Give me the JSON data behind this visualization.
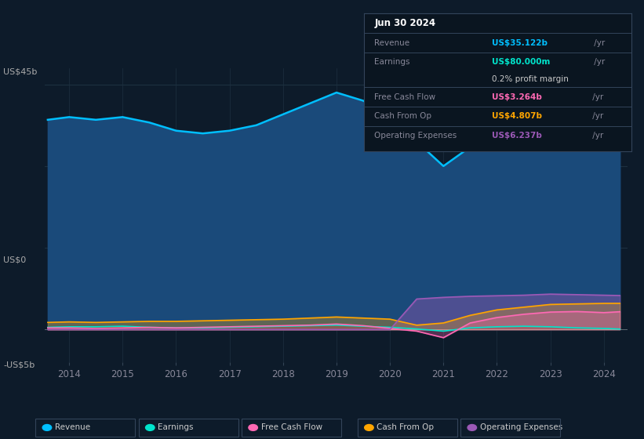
{
  "bg_color": "#0d1b2a",
  "chart_bg": "#0d1b2a",
  "y_label_top": "US$45b",
  "y_label_zero": "US$0",
  "y_label_neg": "-US$5b",
  "x_ticks": [
    2014,
    2015,
    2016,
    2017,
    2018,
    2019,
    2020,
    2021,
    2022,
    2023,
    2024
  ],
  "years": [
    2013.6,
    2014.0,
    2014.5,
    2015.0,
    2015.5,
    2016.0,
    2016.5,
    2017.0,
    2017.5,
    2018.0,
    2018.5,
    2019.0,
    2019.5,
    2020.0,
    2020.5,
    2021.0,
    2021.5,
    2022.0,
    2022.5,
    2023.0,
    2023.5,
    2024.0,
    2024.3
  ],
  "revenue": [
    38.5,
    39.0,
    38.5,
    39.0,
    38.0,
    36.5,
    36.0,
    36.5,
    37.5,
    39.5,
    41.5,
    43.5,
    42.0,
    39.0,
    34.5,
    30.0,
    33.5,
    36.5,
    38.5,
    39.5,
    38.5,
    37.5,
    35.1
  ],
  "earnings": [
    0.4,
    0.5,
    0.5,
    0.6,
    0.4,
    0.3,
    0.3,
    0.4,
    0.5,
    0.6,
    0.7,
    0.8,
    0.6,
    0.4,
    0.1,
    -0.3,
    0.3,
    0.5,
    0.6,
    0.5,
    0.3,
    0.2,
    0.08
  ],
  "free_cash_flow": [
    0.3,
    0.3,
    0.2,
    0.3,
    0.4,
    0.3,
    0.4,
    0.5,
    0.6,
    0.7,
    0.8,
    1.0,
    0.7,
    0.2,
    -0.3,
    -1.5,
    1.2,
    2.2,
    2.8,
    3.2,
    3.3,
    3.1,
    3.264
  ],
  "cash_from_op": [
    1.3,
    1.4,
    1.3,
    1.4,
    1.5,
    1.5,
    1.6,
    1.7,
    1.8,
    1.9,
    2.1,
    2.3,
    2.1,
    1.9,
    0.8,
    1.2,
    2.6,
    3.6,
    4.1,
    4.6,
    4.7,
    4.8,
    4.807
  ],
  "operating_expenses": [
    0.0,
    0.0,
    0.0,
    0.0,
    0.0,
    0.0,
    0.0,
    0.0,
    0.0,
    0.0,
    0.0,
    0.0,
    0.0,
    0.0,
    5.6,
    5.9,
    6.1,
    6.2,
    6.3,
    6.5,
    6.4,
    6.3,
    6.237
  ],
  "revenue_color": "#00bfff",
  "earnings_color": "#00e5cc",
  "free_cash_flow_color": "#ff69b4",
  "cash_from_op_color": "#ffa500",
  "operating_expenses_color": "#9b59b6",
  "revenue_fill": "#1a4a7a",
  "earnings_fill": "#0a3535",
  "info_box": {
    "title": "Jun 30 2024",
    "rows": [
      {
        "type": "header"
      },
      {
        "type": "divider"
      },
      {
        "type": "data",
        "label": "Revenue",
        "value": "US$35.122b",
        "unit": " /yr",
        "color": "#00bfff"
      },
      {
        "type": "divider"
      },
      {
        "type": "data",
        "label": "Earnings",
        "value": "US$80.000m",
        "unit": " /yr",
        "color": "#00e5cc"
      },
      {
        "type": "subtext",
        "text": "0.2% profit margin"
      },
      {
        "type": "divider"
      },
      {
        "type": "data",
        "label": "Free Cash Flow",
        "value": "US$3.264b",
        "unit": " /yr",
        "color": "#ff69b4"
      },
      {
        "type": "divider"
      },
      {
        "type": "data",
        "label": "Cash From Op",
        "value": "US$4.807b",
        "unit": " /yr",
        "color": "#ffa500"
      },
      {
        "type": "divider"
      },
      {
        "type": "data",
        "label": "Operating Expenses",
        "value": "US$6.237b",
        "unit": " /yr",
        "color": "#9b59b6"
      }
    ]
  },
  "legend_items": [
    {
      "label": "Revenue",
      "color": "#00bfff"
    },
    {
      "label": "Earnings",
      "color": "#00e5cc"
    },
    {
      "label": "Free Cash Flow",
      "color": "#ff69b4"
    },
    {
      "label": "Cash From Op",
      "color": "#ffa500"
    },
    {
      "label": "Operating Expenses",
      "color": "#9b59b6"
    }
  ]
}
